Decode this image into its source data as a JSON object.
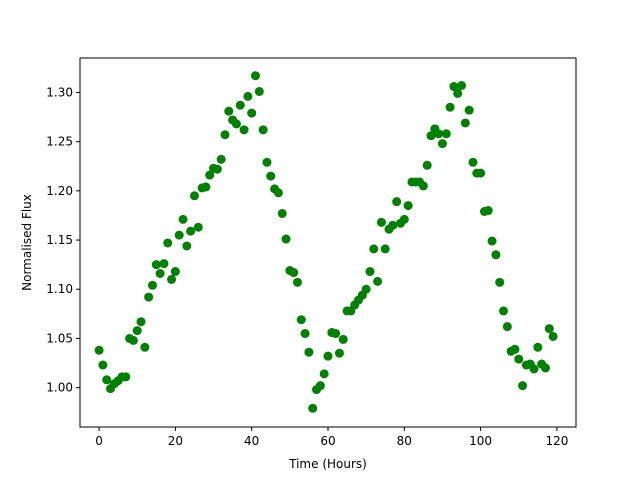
{
  "chart_data": {
    "type": "scatter",
    "title": "",
    "xlabel": "Time (Hours)",
    "ylabel": "Normalised Flux",
    "xlim": [
      -5,
      125
    ],
    "ylim": [
      0.96,
      1.335
    ],
    "xticks": [
      0,
      20,
      40,
      60,
      80,
      100,
      120
    ],
    "xtick_labels": [
      "0",
      "20",
      "40",
      "60",
      "80",
      "100",
      "120"
    ],
    "yticks": [
      1.0,
      1.05,
      1.1,
      1.15,
      1.2,
      1.25,
      1.3
    ],
    "ytick_labels": [
      "1.00",
      "1.05",
      "1.10",
      "1.15",
      "1.20",
      "1.25",
      "1.30"
    ],
    "grid": false,
    "marker_color": "#008000",
    "series": [
      {
        "points": [
          [
            0,
            1.038
          ],
          [
            1,
            1.023
          ],
          [
            2,
            1.008
          ],
          [
            3,
            0.999
          ],
          [
            4,
            1.004
          ],
          [
            5,
            1.007
          ],
          [
            6,
            1.011
          ],
          [
            7,
            1.011
          ],
          [
            8,
            1.05
          ],
          [
            9,
            1.048
          ],
          [
            10,
            1.058
          ],
          [
            11,
            1.067
          ],
          [
            12,
            1.041
          ],
          [
            13,
            1.092
          ],
          [
            14,
            1.104
          ],
          [
            15,
            1.125
          ],
          [
            16,
            1.116
          ],
          [
            17,
            1.126
          ],
          [
            18,
            1.147
          ],
          [
            19,
            1.11
          ],
          [
            20,
            1.118
          ],
          [
            21,
            1.155
          ],
          [
            22,
            1.171
          ],
          [
            23,
            1.144
          ],
          [
            24,
            1.159
          ],
          [
            25,
            1.195
          ],
          [
            26,
            1.163
          ],
          [
            27,
            1.203
          ],
          [
            28,
            1.204
          ],
          [
            29,
            1.216
          ],
          [
            30,
            1.223
          ],
          [
            31,
            1.222
          ],
          [
            32,
            1.232
          ],
          [
            33,
            1.257
          ],
          [
            34,
            1.281
          ],
          [
            35,
            1.272
          ],
          [
            36,
            1.268
          ],
          [
            37,
            1.287
          ],
          [
            38,
            1.262
          ],
          [
            39,
            1.296
          ],
          [
            40,
            1.279
          ],
          [
            41,
            1.317
          ],
          [
            42,
            1.301
          ],
          [
            43,
            1.262
          ],
          [
            44,
            1.229
          ],
          [
            45,
            1.215
          ],
          [
            46,
            1.202
          ],
          [
            47,
            1.198
          ],
          [
            48,
            1.177
          ],
          [
            49,
            1.151
          ],
          [
            50,
            1.119
          ],
          [
            51,
            1.117
          ],
          [
            52,
            1.107
          ],
          [
            53,
            1.069
          ],
          [
            54,
            1.055
          ],
          [
            55,
            1.036
          ],
          [
            56,
            0.979
          ],
          [
            57,
            0.998
          ],
          [
            58,
            1.002
          ],
          [
            59,
            1.014
          ],
          [
            60,
            1.032
          ],
          [
            61,
            1.056
          ],
          [
            62,
            1.055
          ],
          [
            63,
            1.035
          ],
          [
            64,
            1.049
          ],
          [
            65,
            1.078
          ],
          [
            66,
            1.078
          ],
          [
            67,
            1.084
          ],
          [
            68,
            1.089
          ],
          [
            69,
            1.094
          ],
          [
            70,
            1.1
          ],
          [
            71,
            1.118
          ],
          [
            72,
            1.141
          ],
          [
            73,
            1.108
          ],
          [
            74,
            1.168
          ],
          [
            75,
            1.141
          ],
          [
            76,
            1.161
          ],
          [
            77,
            1.165
          ],
          [
            78,
            1.189
          ],
          [
            79,
            1.167
          ],
          [
            80,
            1.171
          ],
          [
            81,
            1.185
          ],
          [
            82,
            1.209
          ],
          [
            83,
            1.209
          ],
          [
            84,
            1.209
          ],
          [
            85,
            1.205
          ],
          [
            86,
            1.226
          ],
          [
            87,
            1.256
          ],
          [
            88,
            1.263
          ],
          [
            89,
            1.258
          ],
          [
            90,
            1.248
          ],
          [
            91,
            1.258
          ],
          [
            92,
            1.285
          ],
          [
            93,
            1.306
          ],
          [
            94,
            1.299
          ],
          [
            95,
            1.307
          ],
          [
            96,
            1.269
          ],
          [
            97,
            1.282
          ],
          [
            98,
            1.229
          ],
          [
            99,
            1.218
          ],
          [
            100,
            1.218
          ],
          [
            101,
            1.179
          ],
          [
            102,
            1.18
          ],
          [
            103,
            1.149
          ],
          [
            104,
            1.135
          ],
          [
            105,
            1.107
          ],
          [
            106,
            1.078
          ],
          [
            107,
            1.062
          ],
          [
            108,
            1.037
          ],
          [
            109,
            1.039
          ],
          [
            110,
            1.029
          ],
          [
            111,
            1.002
          ],
          [
            112,
            1.023
          ],
          [
            113,
            1.024
          ],
          [
            114,
            1.019
          ],
          [
            115,
            1.041
          ],
          [
            116,
            1.024
          ],
          [
            117,
            1.02
          ],
          [
            118,
            1.06
          ],
          [
            119,
            1.052
          ]
        ]
      }
    ]
  }
}
